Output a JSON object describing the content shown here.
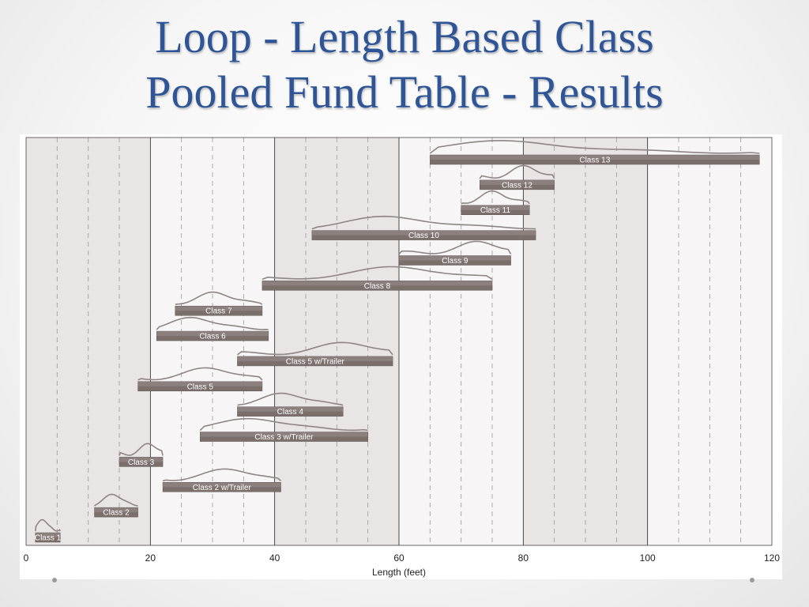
{
  "slide": {
    "title_line1": "Loop - Length Based Class",
    "title_line2": "Pooled Fund Table - Results"
  },
  "colors": {
    "title": "#2f5597",
    "bar": "#7b6f6c",
    "curve": "#8e8584",
    "band_dark": "#e8e5e4",
    "band_light": "#f7f5f5"
  },
  "chart_data": {
    "type": "range-bar",
    "title": "",
    "xlabel": "Length (feet)",
    "ylabel": "",
    "xlim": [
      0,
      120
    ],
    "xticks": [
      "0",
      "20",
      "40",
      "60",
      "80",
      "100",
      "120"
    ],
    "grid": "dashed vertical every 5 ft, solid every 20 ft",
    "classes": [
      {
        "label": "Class 13",
        "start": 65,
        "end": 118
      },
      {
        "label": "Class 12",
        "start": 73,
        "end": 85
      },
      {
        "label": "Class 11",
        "start": 70,
        "end": 81
      },
      {
        "label": "Class 10",
        "start": 46,
        "end": 82
      },
      {
        "label": "Class 9",
        "start": 60,
        "end": 78
      },
      {
        "label": "Class 8",
        "start": 38,
        "end": 75
      },
      {
        "label": "Class 7",
        "start": 24,
        "end": 38
      },
      {
        "label": "Class 6",
        "start": 21,
        "end": 39
      },
      {
        "label": "Class 5 w/Trailer",
        "start": 34,
        "end": 59
      },
      {
        "label": "Class 5",
        "start": 18,
        "end": 38
      },
      {
        "label": "Class 4",
        "start": 34,
        "end": 51
      },
      {
        "label": "Class 3 w/Trailer",
        "start": 28,
        "end": 55
      },
      {
        "label": "Class 3",
        "start": 15,
        "end": 22
      },
      {
        "label": "Class 2 w/Trailer",
        "start": 22,
        "end": 41
      },
      {
        "label": "Class 2",
        "start": 11,
        "end": 18
      },
      {
        "label": "Class 1",
        "start": 1.5,
        "end": 5.5
      }
    ]
  }
}
